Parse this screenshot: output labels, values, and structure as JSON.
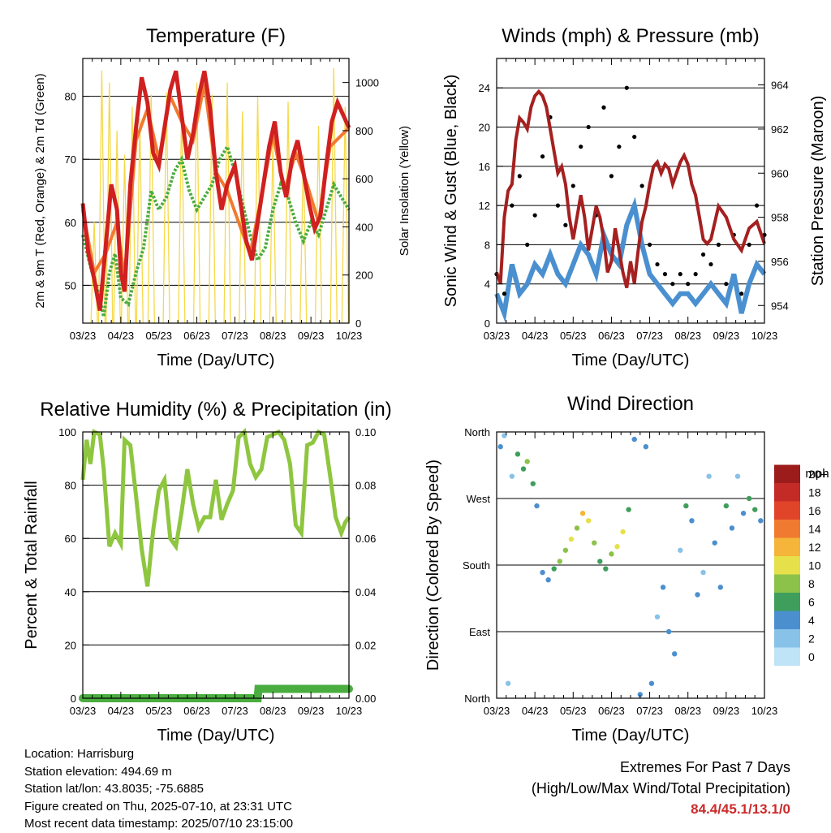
{
  "chart_data": [
    {
      "type": "line",
      "title": "Temperature (F)",
      "xlabel": "Time (Day/UTC)",
      "ylabel": "2m & 9m T (Red, Orange) & 2m Td (Green)",
      "y2label": "Solar Insolation (Yellow)",
      "x_ticks": [
        "03/23",
        "04/23",
        "05/23",
        "06/23",
        "07/23",
        "08/23",
        "09/23",
        "10/23"
      ],
      "ylim": [
        44,
        86
      ],
      "y_ticks": [
        50,
        60,
        70,
        80
      ],
      "y2lim": [
        0,
        1100
      ],
      "y2_ticks": [
        0,
        200,
        400,
        600,
        800,
        1000
      ],
      "series": [
        {
          "name": "2m T",
          "color": "#d02020",
          "x": [
            0,
            0.15,
            0.3,
            0.45,
            0.6,
            0.75,
            0.9,
            1.0,
            1.1,
            1.25,
            1.4,
            1.55,
            1.7,
            1.85,
            2.0,
            2.15,
            2.3,
            2.45,
            2.6,
            2.75,
            2.9,
            3.05,
            3.2,
            3.35,
            3.5,
            3.65,
            3.8,
            4.0,
            4.15,
            4.3,
            4.45,
            4.6,
            4.75,
            4.9,
            5.05,
            5.2,
            5.35,
            5.5,
            5.65,
            5.8,
            5.95,
            6.1,
            6.25,
            6.4,
            6.55,
            6.7,
            6.85,
            7.0
          ],
          "y": [
            63,
            55,
            51,
            46,
            56,
            66,
            62,
            52,
            49,
            66,
            75,
            83,
            79,
            71,
            69,
            75,
            81,
            84,
            77,
            70,
            74,
            80,
            84,
            78,
            68,
            62,
            66,
            69,
            63,
            57,
            54,
            60,
            66,
            72,
            76,
            68,
            64,
            70,
            73,
            68,
            63,
            59,
            61,
            69,
            76,
            79,
            77,
            75
          ]
        },
        {
          "name": "9m T",
          "color": "#f07a30",
          "x": [
            0,
            0.3,
            0.6,
            0.9,
            1.1,
            1.4,
            1.7,
            2.0,
            2.3,
            2.6,
            2.9,
            3.2,
            3.5,
            3.8,
            4.1,
            4.4,
            4.7,
            5.0,
            5.3,
            5.6,
            5.9,
            6.2,
            6.5,
            7.0
          ],
          "y": [
            62,
            52,
            55,
            60,
            51,
            73,
            78,
            70,
            80,
            76,
            73,
            82,
            68,
            65,
            60,
            55,
            64,
            74,
            65,
            71,
            66,
            60,
            72,
            75
          ]
        },
        {
          "name": "2m Td",
          "color": "#4aad3f",
          "x": [
            0,
            0.2,
            0.4,
            0.55,
            0.7,
            0.85,
            1.0,
            1.2,
            1.4,
            1.6,
            1.8,
            2.0,
            2.2,
            2.4,
            2.6,
            2.8,
            3.0,
            3.2,
            3.4,
            3.6,
            3.8,
            4.0,
            4.2,
            4.4,
            4.6,
            4.8,
            5.0,
            5.2,
            5.4,
            5.6,
            5.8,
            6.0,
            6.2,
            6.4,
            6.6,
            6.8,
            7.0
          ],
          "y": [
            58,
            53,
            49,
            45,
            52,
            55,
            48,
            47,
            52,
            56,
            65,
            62,
            64,
            68,
            70,
            65,
            62,
            64,
            66,
            70,
            72,
            68,
            63,
            58,
            54,
            56,
            62,
            66,
            64,
            60,
            57,
            60,
            58,
            62,
            66,
            64,
            62
          ]
        },
        {
          "name": "Solar Insolation",
          "color": "#f5d94a",
          "axis": "y2",
          "x": [
            0.3,
            0.5,
            0.7,
            0.9,
            1.1,
            1.3,
            1.5,
            1.8,
            2.2,
            2.6,
            3.0,
            3.4,
            3.8,
            4.2,
            4.6,
            5.0,
            5.4,
            5.8,
            6.2,
            6.6,
            6.9
          ],
          "y": [
            420,
            1050,
            1000,
            800,
            700,
            900,
            850,
            950,
            960,
            900,
            1000,
            950,
            1000,
            880,
            940,
            760,
            920,
            700,
            820,
            1060,
            900
          ]
        }
      ]
    },
    {
      "type": "line",
      "title": "Winds (mph) & Pressure (mb)",
      "xlabel": "Time (Day/UTC)",
      "ylabel": "Sonic Wind & Gust (Blue, Black)",
      "y2label": "Station Pressure (Maroon)",
      "x_ticks": [
        "03/23",
        "04/23",
        "05/23",
        "06/23",
        "07/23",
        "08/23",
        "09/23",
        "10/23"
      ],
      "ylim": [
        0,
        27
      ],
      "y_ticks": [
        0,
        4,
        8,
        12,
        16,
        20,
        24
      ],
      "y2lim": [
        953.2,
        965.2
      ],
      "y2_ticks": [
        954,
        956,
        958,
        960,
        962,
        964
      ],
      "series": [
        {
          "name": "Sonic Wind",
          "color": "#4a90d0",
          "x": [
            0,
            0.2,
            0.4,
            0.6,
            0.8,
            1.0,
            1.2,
            1.4,
            1.6,
            1.8,
            2.0,
            2.2,
            2.4,
            2.6,
            2.8,
            3.0,
            3.2,
            3.4,
            3.6,
            3.8,
            4.0,
            4.2,
            4.4,
            4.6,
            4.8,
            5.0,
            5.2,
            5.4,
            5.6,
            5.8,
            6.0,
            6.2,
            6.4,
            6.6,
            6.8,
            7.0
          ],
          "y": [
            3,
            1,
            6,
            3,
            4,
            6,
            5,
            7,
            5,
            4,
            6,
            8,
            7,
            5,
            9,
            7,
            6,
            10,
            12,
            8,
            5,
            4,
            3,
            2,
            3,
            3,
            2,
            3,
            4,
            3,
            2,
            5,
            1,
            4,
            6,
            5
          ]
        },
        {
          "name": "Gust",
          "color": "#000000",
          "x": [
            0,
            0.2,
            0.4,
            0.6,
            0.8,
            1.0,
            1.2,
            1.4,
            1.6,
            1.8,
            2.0,
            2.2,
            2.4,
            2.6,
            2.8,
            3.0,
            3.2,
            3.4,
            3.6,
            3.8,
            4.0,
            4.2,
            4.4,
            4.6,
            4.8,
            5.0,
            5.2,
            5.4,
            5.6,
            5.8,
            6.0,
            6.2,
            6.4,
            6.6,
            6.8,
            7.0
          ],
          "y": [
            5,
            3,
            12,
            15,
            8,
            11,
            17,
            21,
            12,
            10,
            14,
            18,
            20,
            11,
            22,
            15,
            18,
            24,
            19,
            14,
            8,
            6,
            5,
            4,
            5,
            4,
            5,
            7,
            6,
            8,
            4,
            9,
            3,
            8,
            12,
            9
          ]
        },
        {
          "name": "Station Pressure",
          "color": "#a52020",
          "axis": "y2",
          "x": [
            0,
            0.1,
            0.2,
            0.3,
            0.4,
            0.5,
            0.6,
            0.7,
            0.8,
            0.9,
            1.0,
            1.1,
            1.2,
            1.3,
            1.4,
            1.5,
            1.6,
            1.7,
            1.8,
            1.9,
            2.0,
            2.1,
            2.2,
            2.3,
            2.4,
            2.5,
            2.6,
            2.7,
            2.8,
            2.9,
            3.0,
            3.1,
            3.2,
            3.3,
            3.4,
            3.5,
            3.6,
            3.7,
            3.8,
            3.9,
            4.0,
            4.1,
            4.2,
            4.3,
            4.4,
            4.5,
            4.6,
            4.7,
            4.8,
            4.9,
            5.0,
            5.1,
            5.2,
            5.3,
            5.4,
            5.5,
            5.6,
            5.8,
            6.0,
            6.2,
            6.4,
            6.6,
            6.8,
            7.0
          ],
          "y": [
            955.5,
            955.0,
            958.0,
            959.2,
            959.5,
            961.5,
            962.5,
            962.3,
            962.0,
            963.0,
            963.5,
            963.7,
            963.5,
            963.0,
            962.0,
            961.0,
            960.0,
            960.3,
            959.5,
            958.0,
            957.0,
            958.0,
            959.0,
            958.0,
            956.5,
            957.5,
            958.5,
            958.0,
            957.0,
            955.5,
            956.0,
            957.5,
            956.5,
            955.5,
            954.8,
            956.0,
            955.0,
            956.5,
            957.8,
            958.5,
            959.5,
            960.3,
            960.5,
            960.0,
            960.4,
            960.2,
            959.5,
            960.0,
            960.5,
            960.8,
            960.4,
            959.5,
            959.0,
            958.0,
            957.0,
            956.8,
            957.0,
            958.5,
            958.0,
            957.0,
            956.5,
            957.5,
            957.8,
            956.8
          ]
        }
      ]
    },
    {
      "type": "line",
      "title": "Relative Humidity (%) & Precipitation (in)",
      "xlabel": "Time (Day/UTC)",
      "ylabel": "Percent & Total Rainfall",
      "x_ticks": [
        "03/23",
        "04/23",
        "05/23",
        "06/23",
        "07/23",
        "08/23",
        "09/23",
        "10/23"
      ],
      "ylim": [
        0,
        100
      ],
      "y_ticks": [
        0,
        20,
        40,
        60,
        80,
        100
      ],
      "y2lim": [
        0,
        0.1
      ],
      "y2_ticks": [
        "0.00",
        "0.02",
        "0.04",
        "0.06",
        "0.08",
        "0.10"
      ],
      "series": [
        {
          "name": "Relative Humidity",
          "color": "#8ec63f",
          "x": [
            0,
            0.1,
            0.2,
            0.3,
            0.45,
            0.55,
            0.7,
            0.85,
            1.0,
            1.1,
            1.25,
            1.4,
            1.55,
            1.7,
            1.85,
            2.0,
            2.15,
            2.3,
            2.45,
            2.6,
            2.75,
            2.9,
            3.05,
            3.2,
            3.35,
            3.5,
            3.65,
            3.8,
            3.95,
            4.1,
            4.25,
            4.4,
            4.55,
            4.7,
            4.85,
            5.0,
            5.15,
            5.3,
            5.45,
            5.6,
            5.75,
            5.9,
            6.05,
            6.2,
            6.35,
            6.5,
            6.65,
            6.8,
            6.9,
            7.0
          ],
          "y": [
            82,
            97,
            88,
            100,
            99,
            86,
            57,
            62,
            58,
            97,
            95,
            76,
            56,
            42,
            63,
            78,
            82,
            60,
            57,
            70,
            86,
            73,
            64,
            68,
            68,
            82,
            67,
            73,
            78,
            98,
            100,
            88,
            83,
            86,
            98,
            99,
            100,
            97,
            88,
            65,
            62,
            95,
            96,
            100,
            99,
            84,
            68,
            62,
            66,
            68
          ]
        },
        {
          "name": "Precipitation",
          "color": "#4aad3f",
          "axis": "y2",
          "x": [
            0,
            4.6,
            4.62,
            7.0
          ],
          "y": [
            0.0,
            0.0,
            0.0035,
            0.0035
          ]
        }
      ]
    },
    {
      "type": "scatter",
      "title": "Wind Direction",
      "xlabel": "Time (Day/UTC)",
      "ylabel": "Direction (Colored By Speed)",
      "x_ticks": [
        "03/23",
        "04/23",
        "05/23",
        "06/23",
        "07/23",
        "08/23",
        "09/23",
        "10/23"
      ],
      "y_ticks": [
        "North",
        "East",
        "South",
        "West",
        "North"
      ],
      "ylim": [
        0,
        360
      ],
      "colorbar": {
        "title": "mph",
        "labels": [
          "0",
          "2",
          "4",
          "6",
          "8",
          "10",
          "12",
          "14",
          "16",
          "18",
          "20+"
        ],
        "colors": [
          "#bfe3f7",
          "#88c2e8",
          "#4b8fcf",
          "#3f9e5c",
          "#8cc24a",
          "#e6e04a",
          "#f5b43a",
          "#f07a30",
          "#e0452a",
          "#c42a26",
          "#9c1c1c"
        ]
      },
      "points": [
        [
          0.1,
          340,
          3
        ],
        [
          0.2,
          355,
          2
        ],
        [
          0.3,
          20,
          1
        ],
        [
          0.4,
          300,
          2
        ],
        [
          0.55,
          330,
          5
        ],
        [
          0.7,
          310,
          6
        ],
        [
          0.8,
          320,
          7
        ],
        [
          0.95,
          290,
          6
        ],
        [
          1.05,
          260,
          4
        ],
        [
          1.2,
          170,
          4
        ],
        [
          1.35,
          160,
          3
        ],
        [
          1.5,
          175,
          6
        ],
        [
          1.65,
          185,
          7
        ],
        [
          1.8,
          200,
          8
        ],
        [
          1.95,
          215,
          9
        ],
        [
          2.1,
          230,
          8
        ],
        [
          2.25,
          250,
          11
        ],
        [
          2.4,
          240,
          9
        ],
        [
          2.55,
          210,
          7
        ],
        [
          2.7,
          185,
          6
        ],
        [
          2.85,
          175,
          5
        ],
        [
          3.0,
          195,
          8
        ],
        [
          3.15,
          205,
          10
        ],
        [
          3.3,
          225,
          9
        ],
        [
          3.45,
          255,
          6
        ],
        [
          3.6,
          350,
          3
        ],
        [
          3.75,
          5,
          3
        ],
        [
          3.9,
          340,
          4
        ],
        [
          4.05,
          20,
          3
        ],
        [
          4.2,
          110,
          2
        ],
        [
          4.35,
          150,
          3
        ],
        [
          4.5,
          90,
          4
        ],
        [
          4.65,
          60,
          3
        ],
        [
          4.8,
          200,
          2
        ],
        [
          4.95,
          260,
          5
        ],
        [
          5.1,
          240,
          4
        ],
        [
          5.25,
          140,
          3
        ],
        [
          5.4,
          170,
          2
        ],
        [
          5.55,
          300,
          2
        ],
        [
          5.7,
          210,
          4
        ],
        [
          5.85,
          150,
          3
        ],
        [
          6.0,
          260,
          5
        ],
        [
          6.15,
          230,
          3
        ],
        [
          6.3,
          300,
          2
        ],
        [
          6.45,
          250,
          4
        ],
        [
          6.6,
          270,
          5
        ],
        [
          6.75,
          255,
          6
        ],
        [
          6.9,
          240,
          4
        ]
      ]
    }
  ],
  "info": {
    "location": "Location: Harrisburg",
    "elevation": "Station elevation: 494.69 m",
    "latlon": "Station lat/lon: 43.8035; -75.6885",
    "created": "Figure created on Thu, 2025-07-10, at 23:31 UTC",
    "recent": "Most recent data timestamp: 2025/07/10 23:15:00"
  },
  "extremes": {
    "line1": "Extremes For Past 7 Days",
    "line2": "(High/Low/Max Wind/Total Precipitation)",
    "values": "84.4/45.1/13.1/0"
  }
}
